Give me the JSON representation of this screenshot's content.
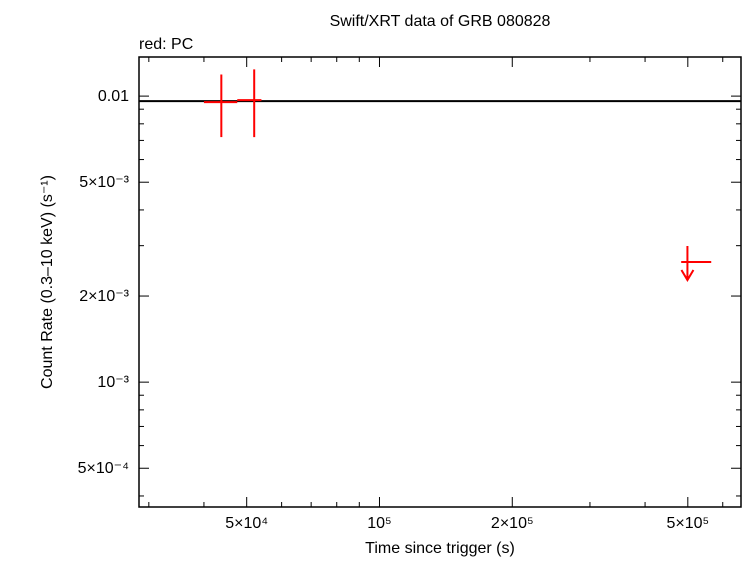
{
  "chart_data": {
    "type": "scatter",
    "title": "Swift/XRT data of GRB 080828",
    "legend_text": "red: PC",
    "x_label": "Time since trigger (s)",
    "y_label": "Count Rate (0.3–10 keV) (s⁻¹)",
    "log_x": true,
    "log_y": true,
    "xlim": [
      28500,
      660000
    ],
    "ylim": [
      0.000366,
      0.0137
    ],
    "xticks": [
      {
        "value": 50000,
        "label": "5×10⁴"
      },
      {
        "value": 100000,
        "label": "10⁵"
      },
      {
        "value": 200000,
        "label": "2×10⁵"
      },
      {
        "value": 500000,
        "label": "5×10⁵"
      }
    ],
    "yticks": [
      {
        "value": 0.0005,
        "label": "5×10⁻⁴"
      },
      {
        "value": 0.001,
        "label": "10⁻³"
      },
      {
        "value": 0.002,
        "label": "2×10⁻³"
      },
      {
        "value": 0.005,
        "label": "5×10⁻³"
      },
      0.01
    ],
    "xminor": [
      30000,
      40000,
      60000,
      70000,
      80000,
      90000,
      300000,
      400000,
      600000
    ],
    "yminor": [
      0.0004,
      0.0006,
      0.0007,
      0.0008,
      0.0009,
      0.003,
      0.004,
      0.006,
      0.007,
      0.008,
      0.009
    ],
    "hline": 0.0096,
    "series": [
      {
        "color": "#ff0000",
        "x": [
          43800,
          52000
        ],
        "xlo": [
          40000,
          47600
        ],
        "xhi": [
          47600,
          54000
        ],
        "values": [
          0.00953,
          0.00968
        ],
        "ylo": [
          0.00719,
          0.00719
        ],
        "yhi": [
          0.0119,
          0.0124
        ]
      },
      {
        "color": "#ff0000",
        "upper_limit": true,
        "x": [
          499000
        ],
        "xlo": [
          483000
        ],
        "xhi": [
          565000
        ],
        "values": [
          0.00263
        ]
      }
    ]
  }
}
